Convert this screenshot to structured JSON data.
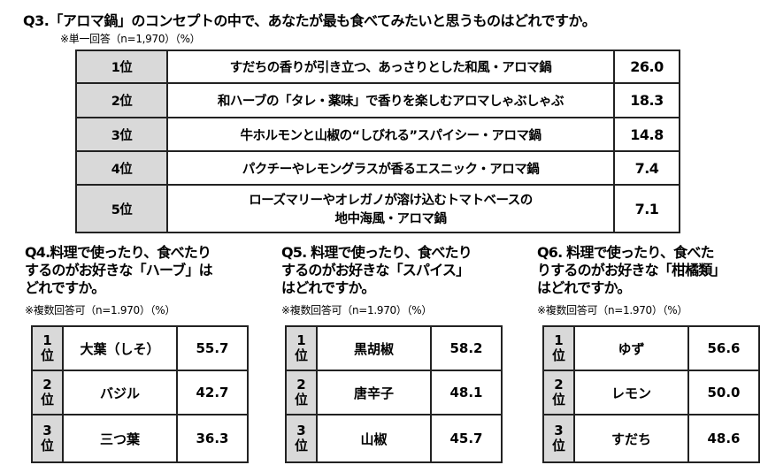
{
  "q3": {
    "title": "Q3.「アロマ鍋」のコンセプトの中で、あなたが最も食べてみたいと思うものはどれですか。",
    "note": "※単一回答（n=1,970）（%）",
    "rows": [
      {
        "rank": "1位",
        "item": "すだちの香りが引き立つ、あっさりとした和風・アロマ鍋",
        "value": "26.0"
      },
      {
        "rank": "2位",
        "item": "和ハーブの「タレ・薬味」で香りを楽しむアロマしゃぶしゃぶ",
        "value": "18.3"
      },
      {
        "rank": "3位",
        "item": "牛ホルモンと山椒の“しびれる”スパイシー・アロマ鍋",
        "value": "14.8"
      },
      {
        "rank": "4位",
        "item": "パクチーやレモングラスが香るエスニック・アロマ鍋",
        "value": "7.4"
      },
      {
        "rank": "5位",
        "item": "ローズマリーやオレガノが溶け込むトマトベースの",
        "item2": "地中海風・アロマ鍋",
        "value": "7.1"
      }
    ]
  },
  "q4": {
    "title": [
      "Q4.料理で使ったり、食べたり",
      "するのがお好きな「ハーブ」は",
      "どれですか。"
    ],
    "note": "※複数回答可（n=1.970）（%）",
    "rows": [
      {
        "num": "1",
        "unit": "位",
        "item": "大葉（しそ）",
        "value": "55.7"
      },
      {
        "num": "2",
        "unit": "位",
        "item": "バジル",
        "value": "42.7"
      },
      {
        "num": "3",
        "unit": "位",
        "item": "三つ葉",
        "value": "36.3"
      }
    ]
  },
  "q5": {
    "title": [
      "Q5. 料理で使ったり、食べたり",
      "するのがお好きな「スパイス」",
      "はどれですか。"
    ],
    "note": "※複数回答可（n=1.970）（%）",
    "rows": [
      {
        "num": "1",
        "unit": "位",
        "item": "黒胡椒",
        "value": "58.2"
      },
      {
        "num": "2",
        "unit": "位",
        "item": "唐辛子",
        "value": "48.1"
      },
      {
        "num": "3",
        "unit": "位",
        "item": "山椒",
        "value": "45.7"
      }
    ]
  },
  "q6": {
    "title": [
      "Q6. 料理で使ったり、食べた",
      "りするのがお好きな「柑橘類」",
      "はどれですか。"
    ],
    "note": "※複数回答可（n=1.970）（%）",
    "rows": [
      {
        "num": "1",
        "unit": "位",
        "item": "ゆず",
        "value": "56.6"
      },
      {
        "num": "2",
        "unit": "位",
        "item": "レモン",
        "value": "50.0"
      },
      {
        "num": "3",
        "unit": "位",
        "item": "すだち",
        "value": "48.6"
      }
    ]
  }
}
